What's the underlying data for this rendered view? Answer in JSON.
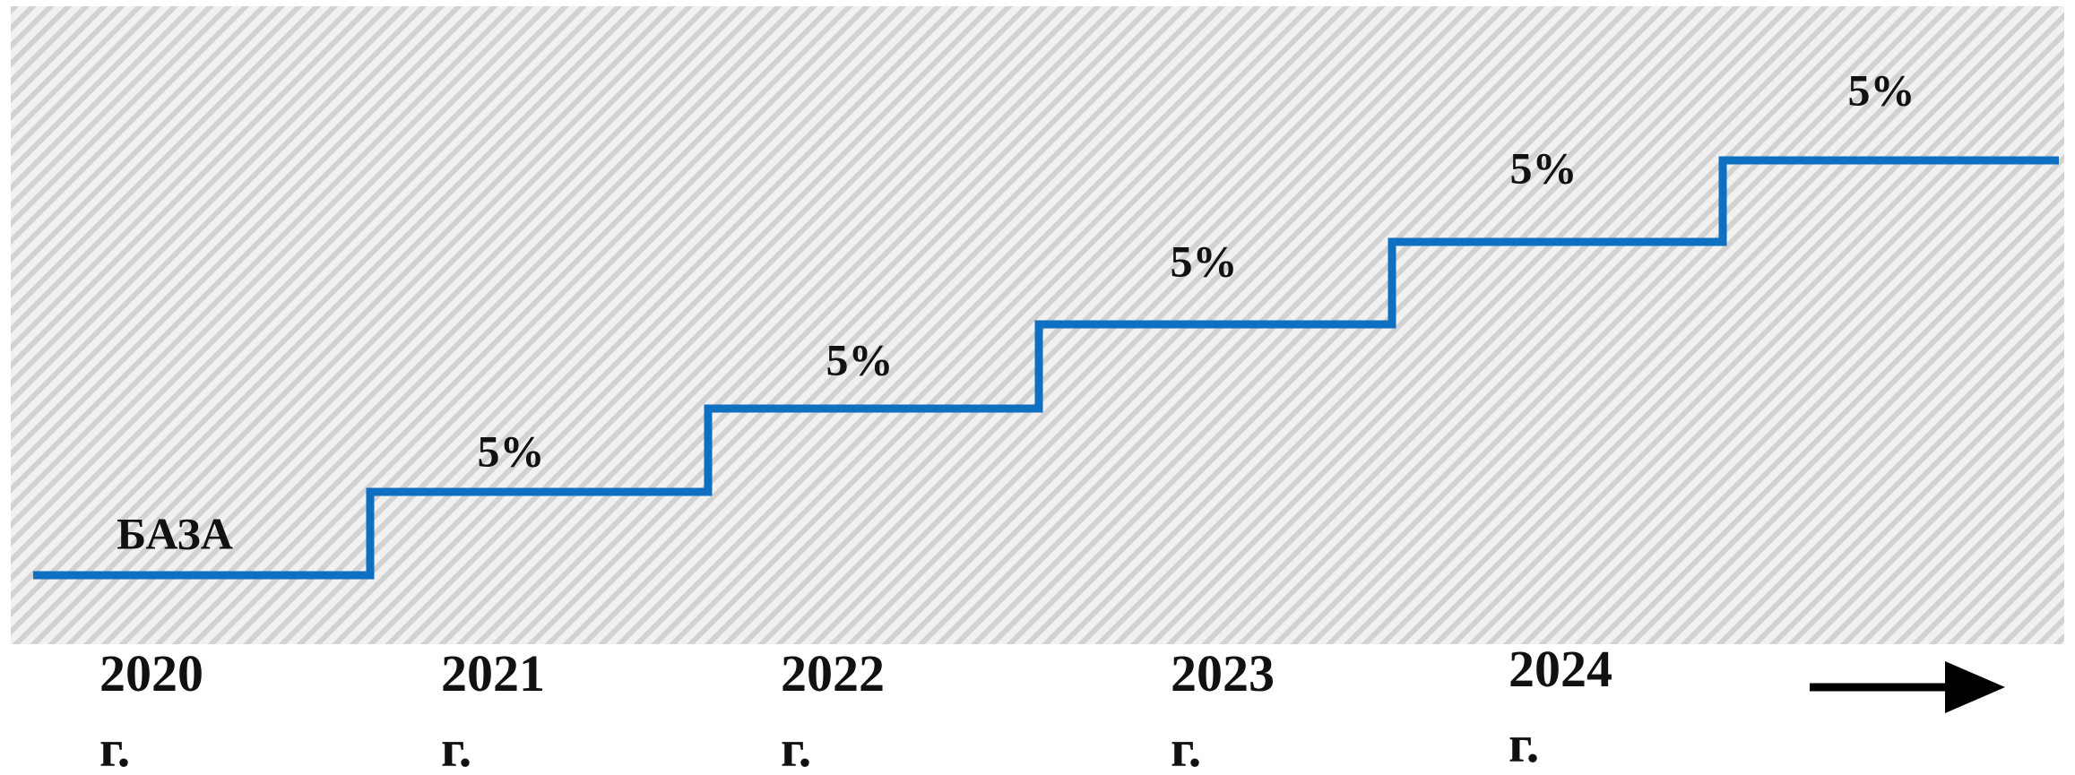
{
  "base_label": "БАЗА",
  "steps": [
    {
      "label": "5%"
    },
    {
      "label": "5%"
    },
    {
      "label": "5%"
    },
    {
      "label": "5%"
    },
    {
      "label": "5%"
    }
  ],
  "years": [
    "2020 г.",
    "2021 г.",
    "2022 г.",
    "2023 г.",
    "2024 г."
  ]
}
